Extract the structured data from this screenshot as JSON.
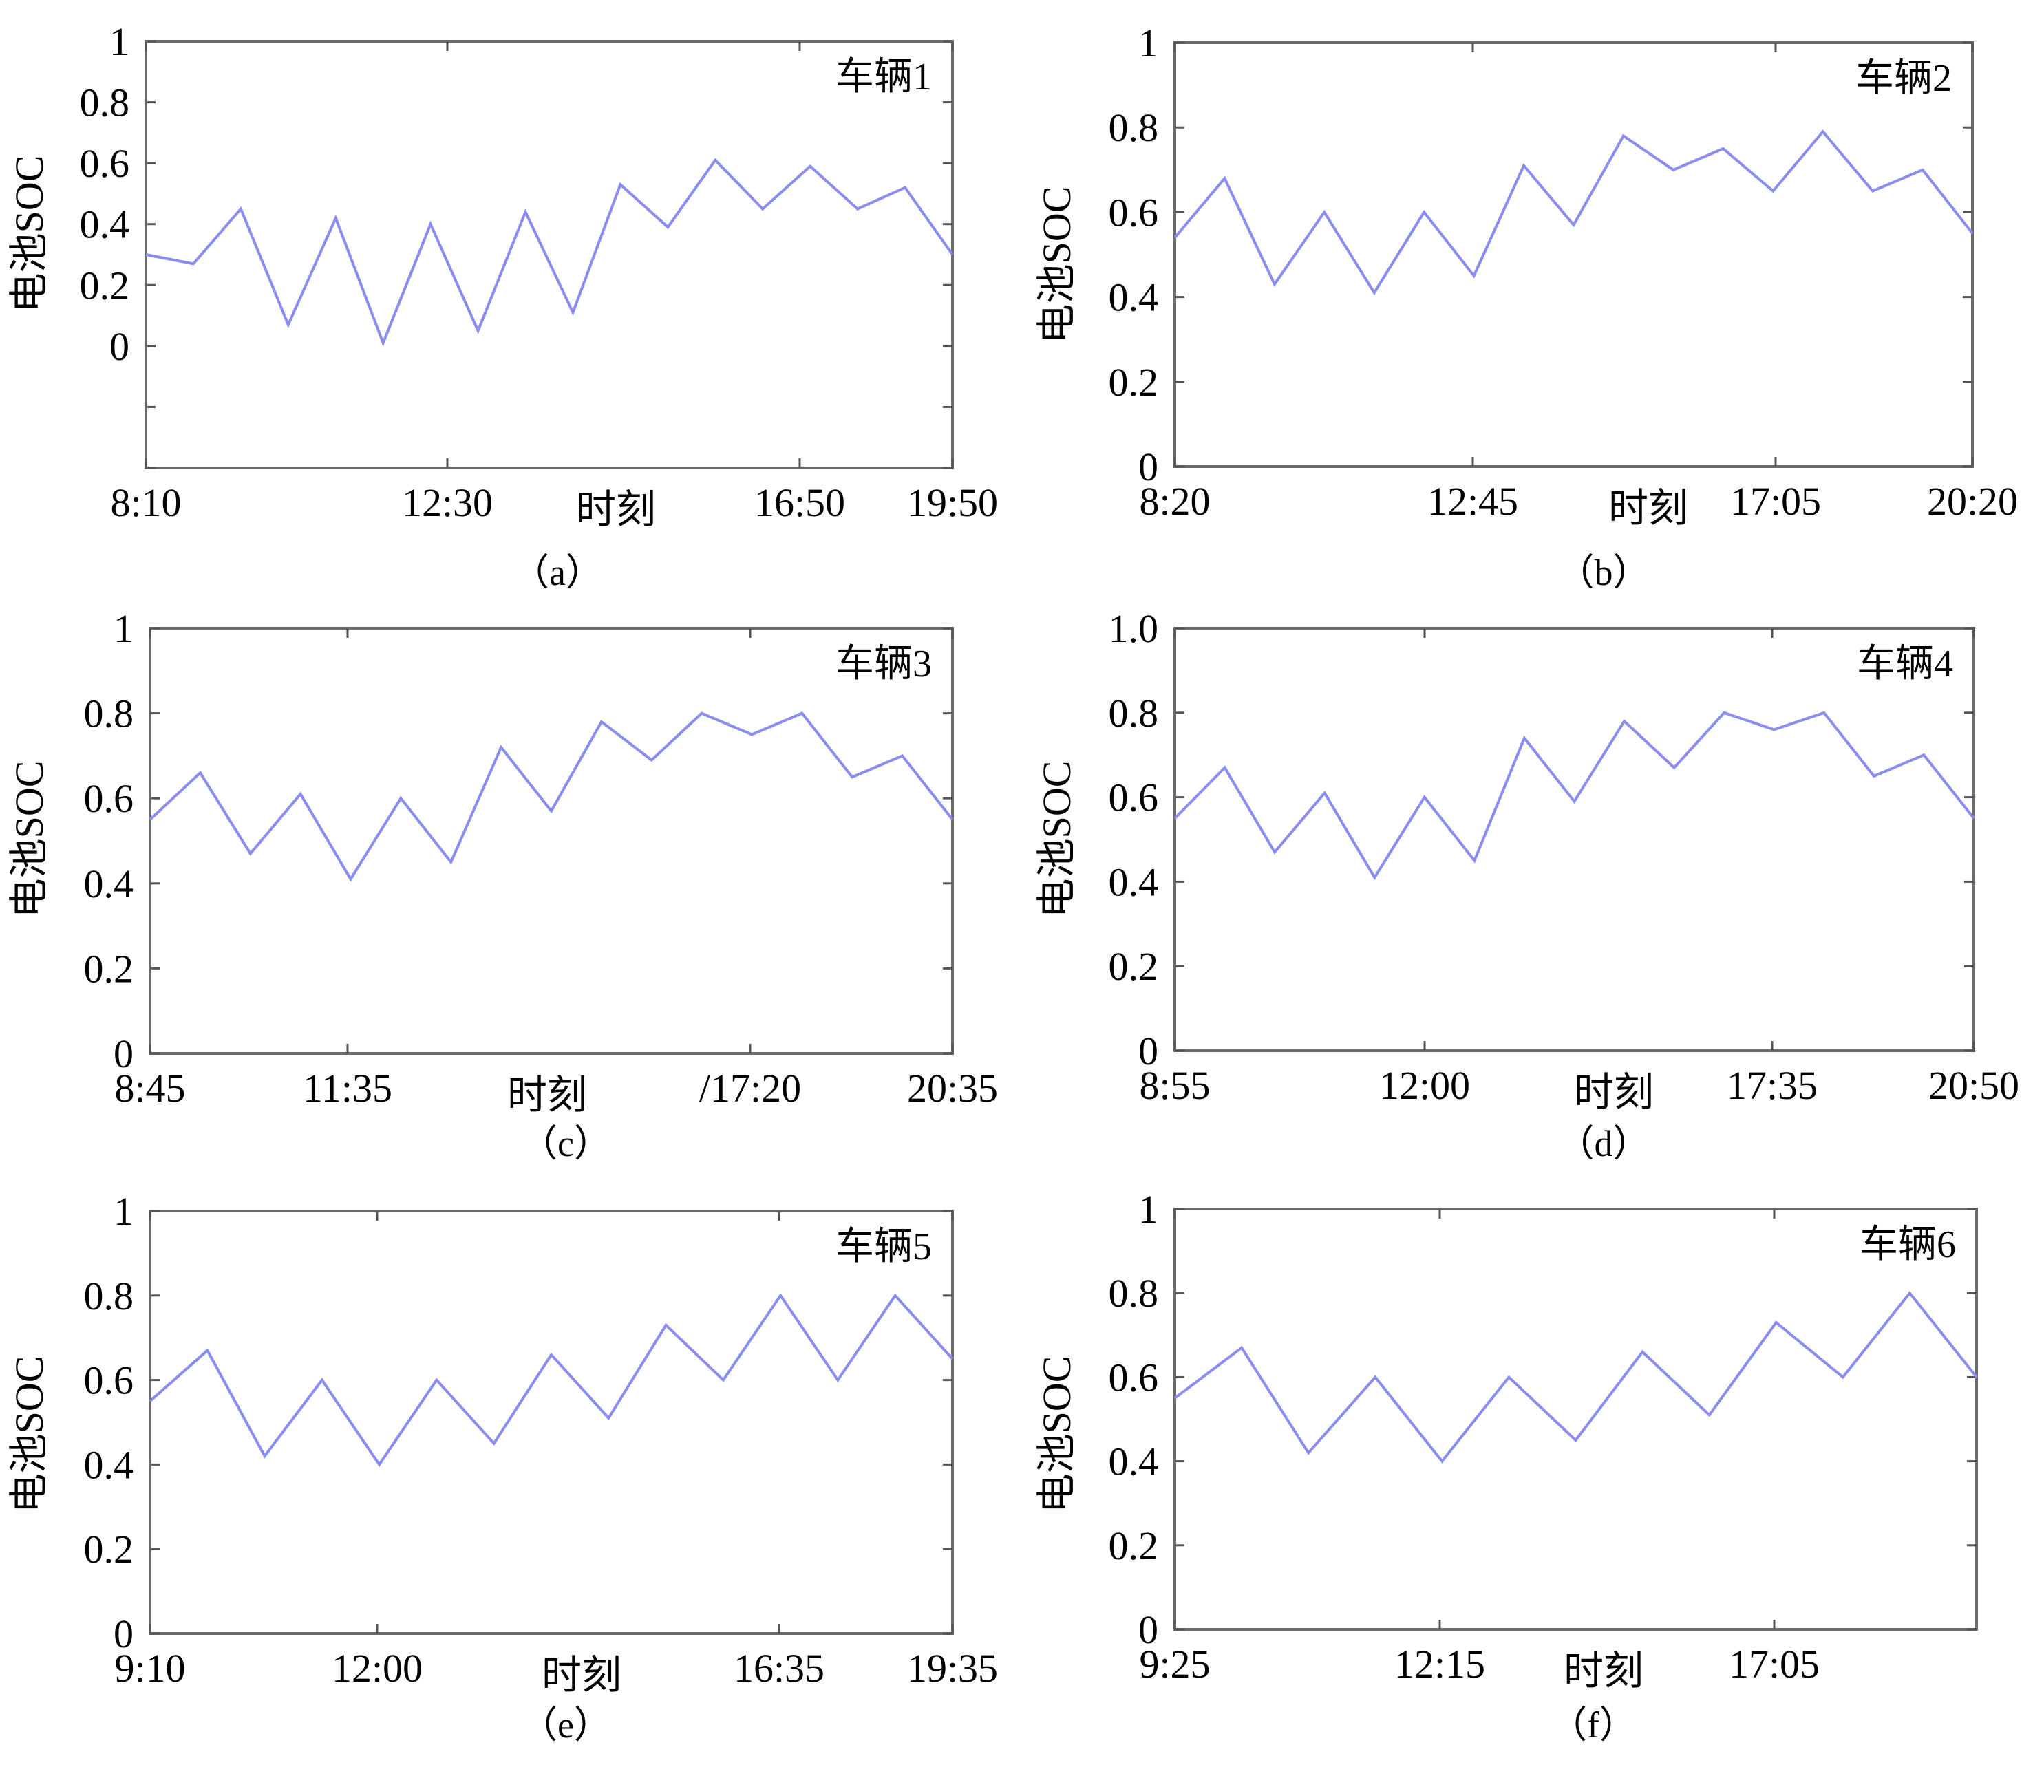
{
  "chart_data": [
    {
      "type": "line",
      "panel": "a",
      "caption": "（a）",
      "title": "车辆1",
      "xlabel": "时刻",
      "ylabel": "电池SOC",
      "ylim": [
        -0.4,
        1
      ],
      "yticks": [
        0,
        0.2,
        0.4,
        0.6,
        0.8,
        1
      ],
      "ytick_labels": [
        "0",
        "0.2",
        "0.4",
        "0.6",
        "0.8",
        "1"
      ],
      "extra_yticks": [
        -0.2,
        -0.4
      ],
      "xticks": [
        {
          "label": "8:10"
        },
        {
          "label": "12:30"
        },
        {
          "label": "16:50"
        },
        {
          "label": "19:50"
        }
      ],
      "grid": false,
      "series": [
        {
          "color": "#8a8df0",
          "values": [
            0.3,
            0.27,
            0.45,
            0.07,
            0.42,
            0.01,
            0.4,
            0.05,
            0.44,
            0.11,
            0.53,
            0.39,
            0.61,
            0.45,
            0.59,
            0.45,
            0.52,
            0.3
          ]
        }
      ]
    },
    {
      "type": "line",
      "panel": "b",
      "caption": "（b）",
      "title": "车辆2",
      "xlabel": "时刻",
      "ylabel": "电池SOC",
      "ylim": [
        0,
        1
      ],
      "yticks": [
        0,
        0.2,
        0.4,
        0.6,
        0.8,
        1
      ],
      "ytick_labels": [
        "0",
        "0.2",
        "0.4",
        "0.6",
        "0.8",
        "1"
      ],
      "xticks": [
        {
          "label": "8:20"
        },
        {
          "label": "12:45"
        },
        {
          "label": "17:05"
        },
        {
          "label": "20:20"
        }
      ],
      "grid": false,
      "series": [
        {
          "color": "#8a8df0",
          "values": [
            0.54,
            0.68,
            0.43,
            0.6,
            0.41,
            0.6,
            0.45,
            0.71,
            0.57,
            0.78,
            0.7,
            0.75,
            0.65,
            0.79,
            0.65,
            0.7,
            0.55
          ]
        }
      ]
    },
    {
      "type": "line",
      "panel": "c",
      "caption": "（c）",
      "title": "车辆3",
      "xlabel": "时刻",
      "ylabel": "电池SOC",
      "ylim": [
        0,
        1
      ],
      "yticks": [
        0,
        0.2,
        0.4,
        0.6,
        0.8,
        1
      ],
      "ytick_labels": [
        "0",
        "0.2",
        "0.4",
        "0.6",
        "0.8",
        "1"
      ],
      "xticks": [
        {
          "label": "8:45"
        },
        {
          "label": "11:35"
        },
        {
          "label": "/17:20"
        },
        {
          "label": "20:35"
        }
      ],
      "grid": false,
      "series": [
        {
          "color": "#8a8df0",
          "values": [
            0.55,
            0.66,
            0.47,
            0.61,
            0.41,
            0.6,
            0.45,
            0.72,
            0.57,
            0.78,
            0.69,
            0.8,
            0.75,
            0.8,
            0.65,
            0.7,
            0.55
          ]
        }
      ]
    },
    {
      "type": "line",
      "panel": "d",
      "caption": "（d）",
      "title": "车辆4",
      "xlabel": "时刻",
      "ylabel": "电池SOC",
      "ylim": [
        0,
        1
      ],
      "yticks": [
        0,
        0.2,
        0.4,
        0.6,
        0.8,
        1
      ],
      "ytick_labels": [
        "0",
        "0.2",
        "0.4",
        "0.6",
        "0.8",
        "1.0"
      ],
      "xticks": [
        {
          "label": "8:55"
        },
        {
          "label": "12:00"
        },
        {
          "label": "17:35"
        },
        {
          "label": "20:50"
        }
      ],
      "grid": false,
      "series": [
        {
          "color": "#8a8df0",
          "values": [
            0.55,
            0.67,
            0.47,
            0.61,
            0.41,
            0.6,
            0.45,
            0.74,
            0.59,
            0.78,
            0.67,
            0.8,
            0.76,
            0.8,
            0.65,
            0.7,
            0.55
          ]
        }
      ]
    },
    {
      "type": "line",
      "panel": "e",
      "caption": "（e）",
      "title": "车辆5",
      "xlabel": "时刻",
      "ylabel": "电池SOC",
      "ylim": [
        0,
        1
      ],
      "yticks": [
        0,
        0.2,
        0.4,
        0.6,
        0.8,
        1
      ],
      "ytick_labels": [
        "0",
        "0.2",
        "0.4",
        "0.6",
        "0.8",
        "1"
      ],
      "xticks": [
        {
          "label": "9:10"
        },
        {
          "label": "12:00"
        },
        {
          "label": "16:35"
        },
        {
          "label": "19:35"
        }
      ],
      "grid": false,
      "series": [
        {
          "color": "#8a8df0",
          "values": [
            0.55,
            0.67,
            0.42,
            0.6,
            0.4,
            0.6,
            0.45,
            0.66,
            0.51,
            0.73,
            0.6,
            0.8,
            0.6,
            0.8,
            0.65
          ]
        }
      ]
    },
    {
      "type": "line",
      "panel": "f",
      "caption": "（f）",
      "title": "车辆6",
      "xlabel": "时刻",
      "ylabel": "电池SOC",
      "ylim": [
        0,
        1
      ],
      "yticks": [
        0,
        0.2,
        0.4,
        0.6,
        0.8,
        1
      ],
      "ytick_labels": [
        "0",
        "0.2",
        "0.4",
        "0.6",
        "0.8",
        "1"
      ],
      "xticks": [
        {
          "label": "9:25"
        },
        {
          "label": "12:15"
        },
        {
          "label": "17:05"
        }
      ],
      "grid": false,
      "series": [
        {
          "color": "#8a8df0",
          "values": [
            0.55,
            0.67,
            0.42,
            0.6,
            0.4,
            0.6,
            0.45,
            0.66,
            0.51,
            0.73,
            0.6,
            0.8,
            0.6
          ]
        }
      ]
    }
  ]
}
